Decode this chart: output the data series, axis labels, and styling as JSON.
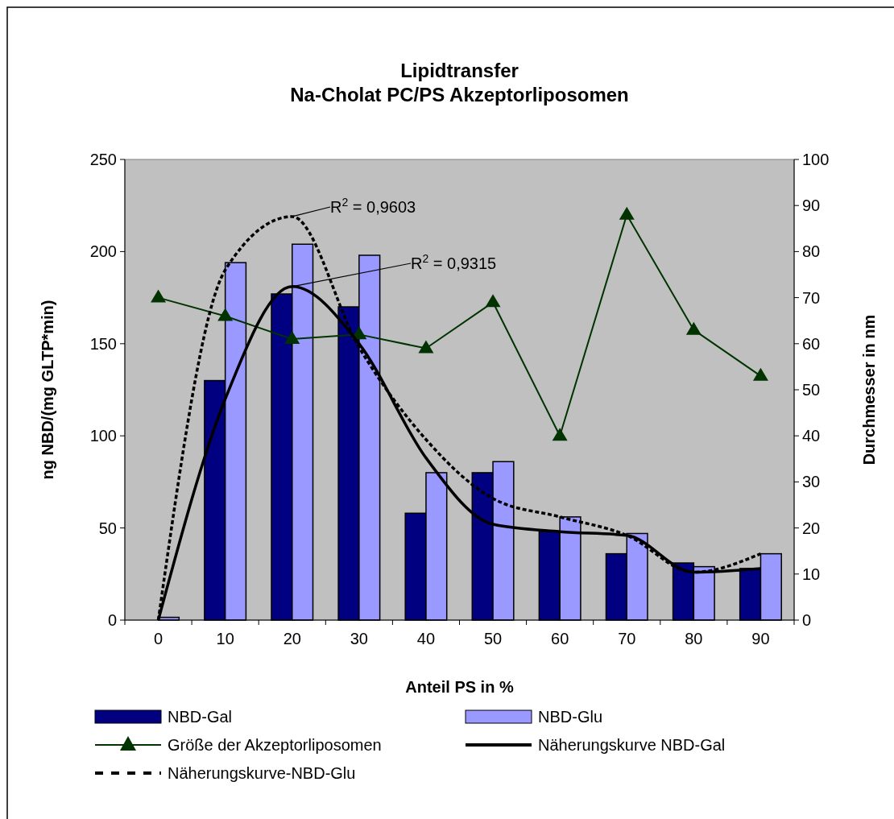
{
  "chart_data": {
    "type": "bar",
    "title": "Lipidtransfer\nNa-Cholat PC/PS Akzeptorliposomen",
    "xlabel": "Anteil PS in %",
    "ylabel": "ng NBD/(mg GLTP*min)",
    "y2label": "Durchmesser in nm",
    "categories": [
      "0",
      "10",
      "20",
      "30",
      "40",
      "50",
      "60",
      "70",
      "80",
      "90"
    ],
    "series": [
      {
        "name": "NBD-Gal",
        "type": "bar",
        "color": "#000080",
        "values": [
          0,
          130,
          177,
          170,
          58,
          80,
          48,
          36,
          31,
          28
        ]
      },
      {
        "name": "NBD-Glu",
        "color": "#9999ff",
        "values": [
          1.5,
          194,
          204,
          198,
          80,
          86,
          56,
          47,
          29,
          36
        ]
      },
      {
        "name": "Größe der Akzeptorliposomen",
        "type": "line",
        "axis": "y2",
        "color": "#003300",
        "marker": "triangle",
        "values": [
          70,
          66,
          61,
          62,
          59,
          69,
          40,
          88,
          63,
          53
        ]
      },
      {
        "name": "Näherungskurve NBD-Gal",
        "type": "line",
        "color": "#000000",
        "line_style": "solid",
        "marker": "none",
        "values": [
          0,
          120,
          181,
          150,
          88,
          52,
          48,
          46,
          26,
          28
        ]
      },
      {
        "name": "Näherungskurve-NBD-Glu",
        "type": "line",
        "color": "#000000",
        "line_style": "dotted",
        "marker": "none",
        "values": [
          0,
          190,
          219,
          148,
          98,
          66,
          56,
          46,
          26,
          36
        ]
      }
    ],
    "ylim": [
      0,
      250
    ],
    "yticks": [
      0,
      50,
      100,
      150,
      200,
      250
    ],
    "y2lim": [
      0,
      100
    ],
    "y2ticks": [
      0,
      10,
      20,
      30,
      40,
      50,
      60,
      70,
      80,
      90,
      100
    ],
    "annotations": [
      {
        "text": "R$^{2}$ = 0,9603",
        "x": "20",
        "y": 219
      },
      {
        "text": "R$^{2}$ = 0,9315",
        "x": "20",
        "y": 181
      }
    ],
    "grid": false,
    "legend": "bottom"
  }
}
